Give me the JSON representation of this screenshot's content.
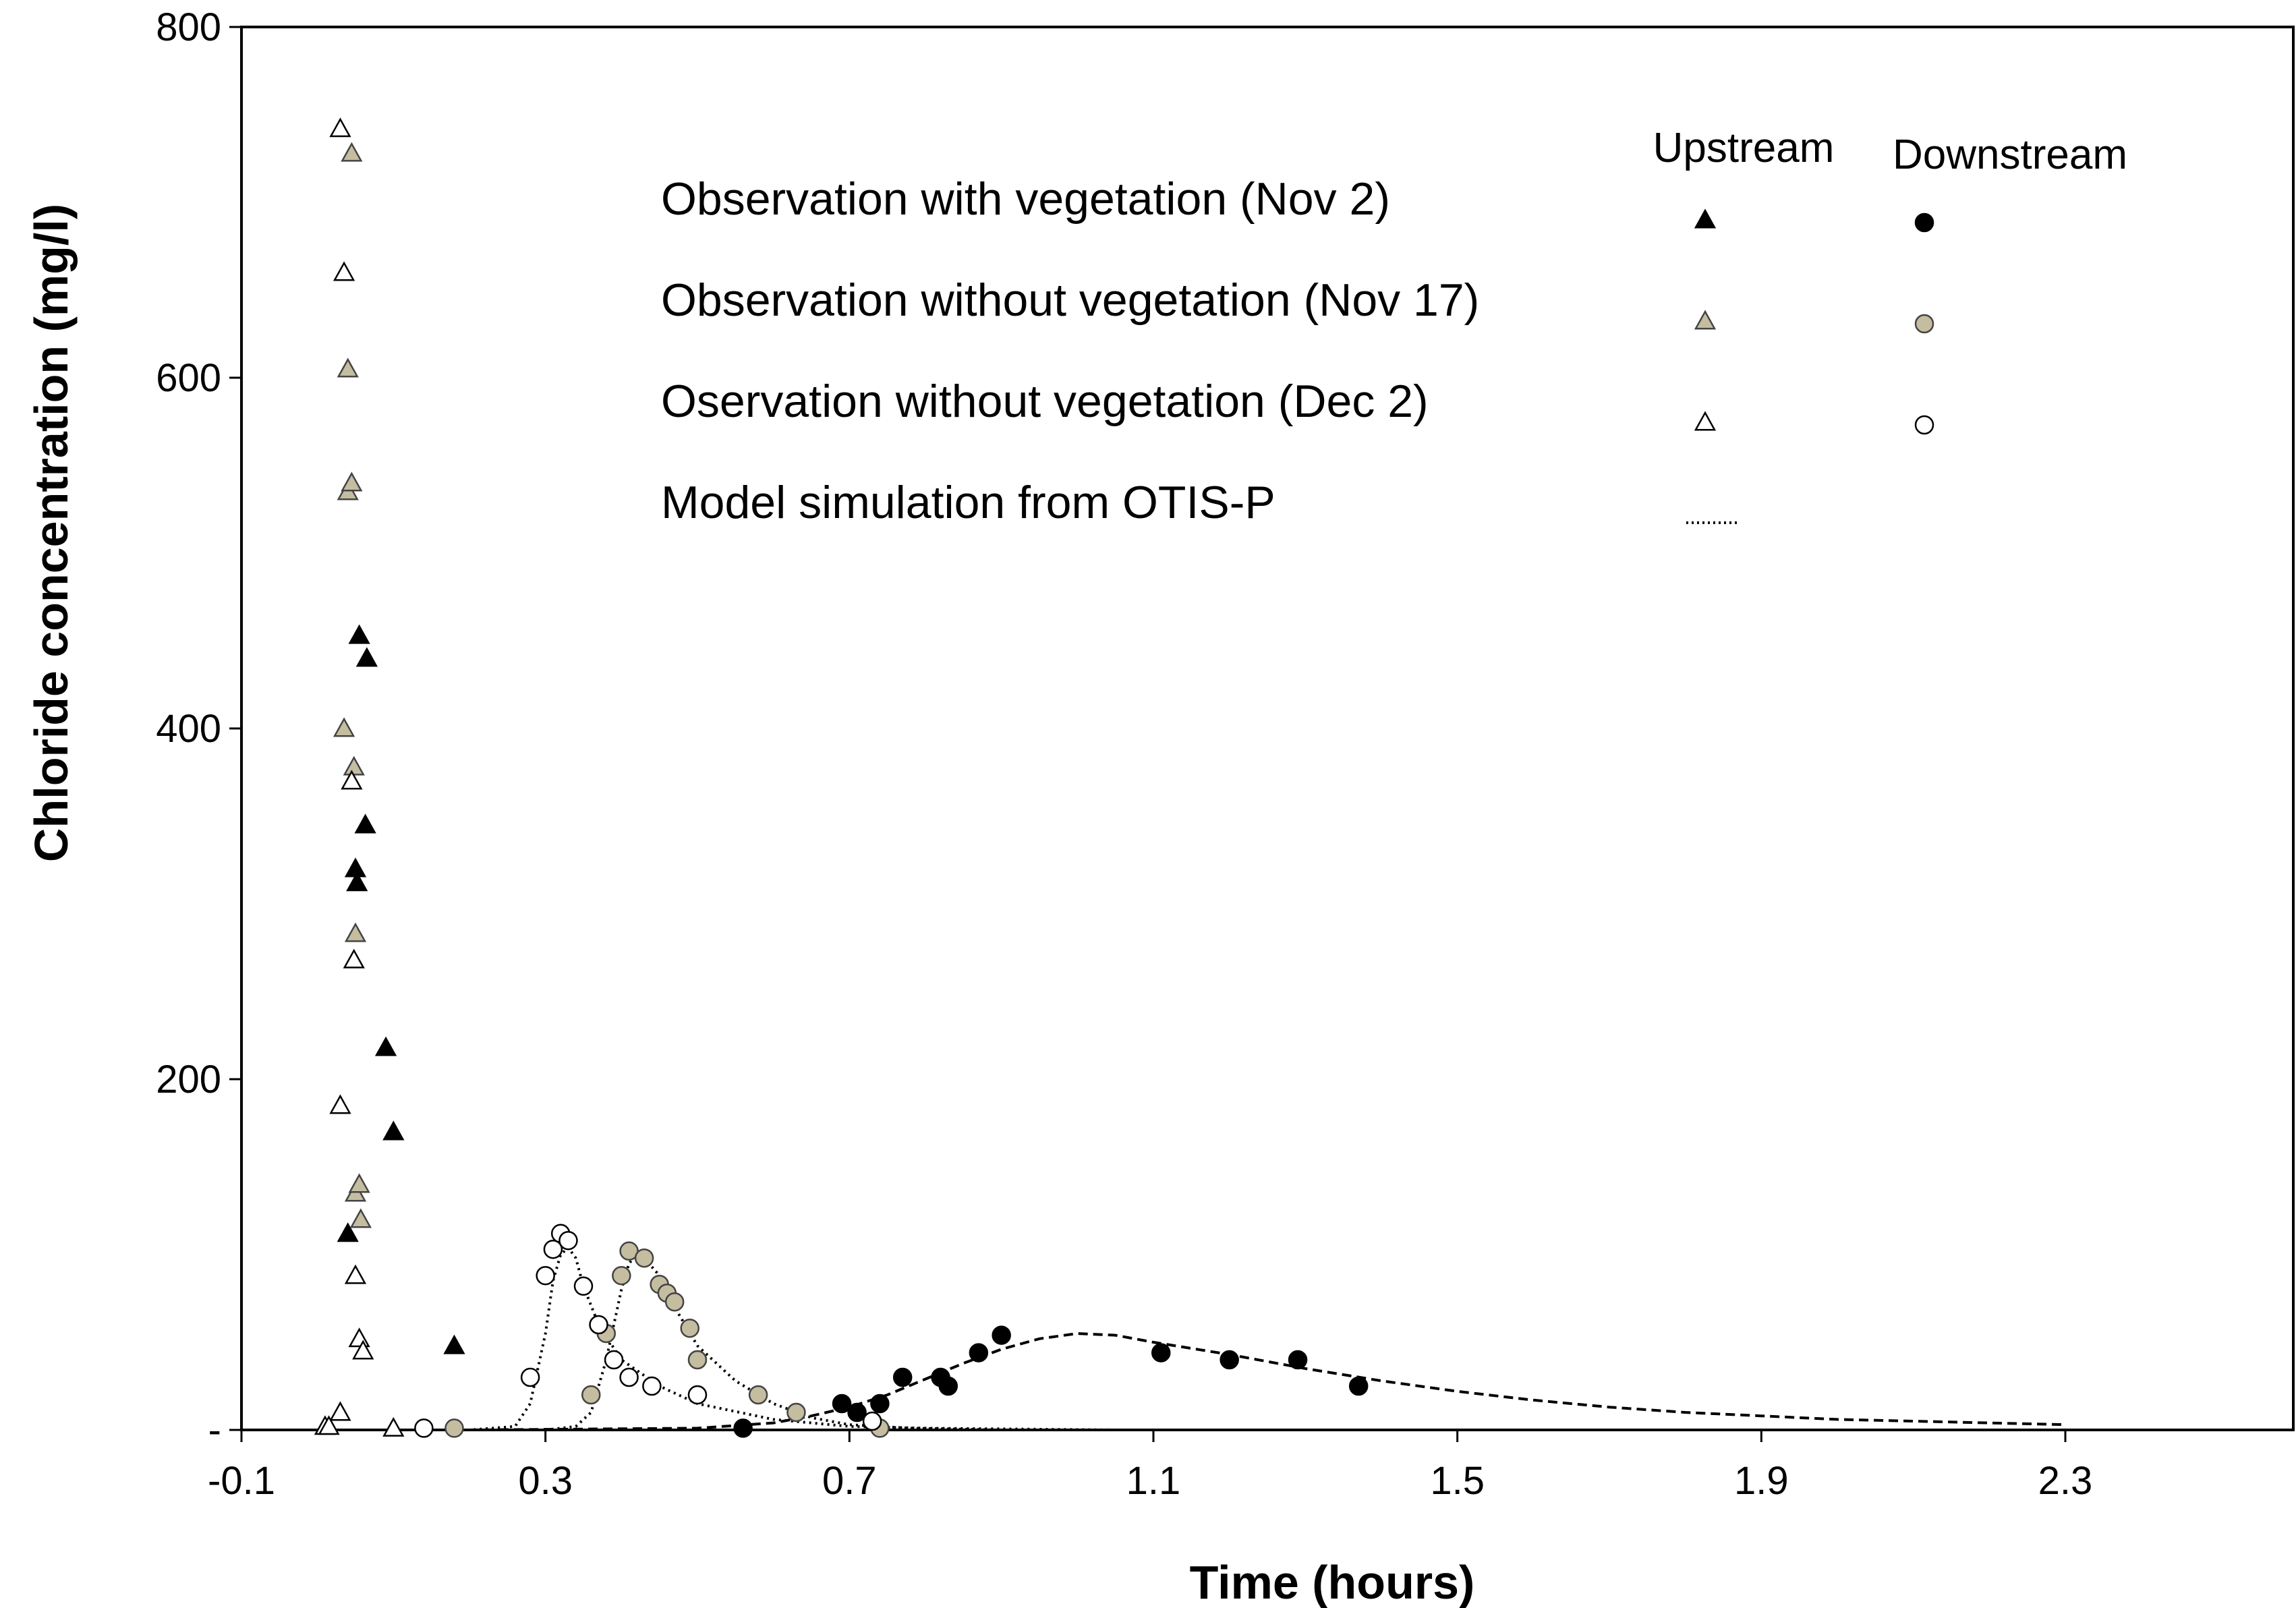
{
  "chart_data": {
    "type": "scatter",
    "title": "",
    "xlabel": "Time (hours)",
    "ylabel": "Chloride concentration (mg/l)",
    "xlim": [
      -0.1,
      2.6
    ],
    "ylim": [
      0,
      800
    ],
    "x_ticks": [
      -0.1,
      0.3,
      0.7,
      1.1,
      1.5,
      1.9,
      2.3
    ],
    "x_tick_labels": [
      "-0.1",
      "0.3",
      "0.7",
      "1.1",
      "1.5",
      "1.9",
      "2.3"
    ],
    "y_ticks": [
      0,
      200,
      400,
      600,
      800
    ],
    "y_tick_labels": [
      "-",
      "200",
      "400",
      "600",
      "800"
    ],
    "grid": false,
    "legend": {
      "placement": "top-right",
      "col_upstream": "Upstream",
      "col_downstream": "Downstream",
      "entries": [
        {
          "label": "Observation with vegetation (Nov 2)",
          "color": "#000000",
          "stroke": "#000000"
        },
        {
          "label": "Observation without vegetation (Nov 17)",
          "color": "#c4bda0",
          "stroke": "#444444"
        },
        {
          "label": "Oservation without vegetation (Dec 2)",
          "color": "#ffffff",
          "stroke": "#000000"
        },
        {
          "label": "Model simulation from OTIS-P",
          "color": "#000000",
          "stroke": "#000000"
        }
      ]
    },
    "series": [
      {
        "name": "Nov 2 Upstream",
        "marker": "triangle",
        "fill": "#000000",
        "stroke": "#000000",
        "points": [
          [
            0.04,
            112
          ],
          [
            0.05,
            320
          ],
          [
            0.052,
            312
          ],
          [
            0.055,
            453
          ],
          [
            0.065,
            440
          ],
          [
            0.063,
            345
          ],
          [
            0.09,
            218
          ],
          [
            0.1,
            170
          ],
          [
            0.18,
            48
          ]
        ]
      },
      {
        "name": "Nov 17 Upstream",
        "marker": "triangle",
        "fill": "#c4bda0",
        "stroke": "#444444",
        "points": [
          [
            0.035,
            400
          ],
          [
            0.04,
            535
          ],
          [
            0.045,
            540
          ],
          [
            0.04,
            605
          ],
          [
            0.045,
            728
          ],
          [
            0.048,
            378
          ],
          [
            0.05,
            283
          ],
          [
            0.05,
            135
          ],
          [
            0.055,
            140
          ],
          [
            0.057,
            120
          ]
        ]
      },
      {
        "name": "Dec 2 Upstream",
        "marker": "triangle",
        "fill": "#ffffff",
        "stroke": "#000000",
        "points": [
          [
            0.03,
            742
          ],
          [
            0.035,
            660
          ],
          [
            0.045,
            370
          ],
          [
            0.048,
            268
          ],
          [
            0.03,
            185
          ],
          [
            0.05,
            88
          ],
          [
            0.055,
            52
          ],
          [
            0.06,
            45
          ],
          [
            0.03,
            10
          ],
          [
            0.01,
            2
          ],
          [
            0.015,
            2
          ],
          [
            0.1,
            1
          ]
        ]
      },
      {
        "name": "Nov 2 Downstream",
        "marker": "circle",
        "fill": "#000000",
        "stroke": "#000000",
        "points": [
          [
            0.56,
            1
          ],
          [
            0.69,
            15
          ],
          [
            0.71,
            10
          ],
          [
            0.74,
            15
          ],
          [
            0.77,
            30
          ],
          [
            0.82,
            30
          ],
          [
            0.83,
            25
          ],
          [
            0.87,
            44
          ],
          [
            0.9,
            54
          ],
          [
            1.11,
            44
          ],
          [
            1.2,
            40
          ],
          [
            1.29,
            40
          ],
          [
            1.37,
            25
          ]
        ]
      },
      {
        "name": "Nov 17 Downstream",
        "marker": "circle",
        "fill": "#c4bda0",
        "stroke": "#444444",
        "points": [
          [
            0.18,
            1
          ],
          [
            0.36,
            20
          ],
          [
            0.38,
            55
          ],
          [
            0.4,
            88
          ],
          [
            0.41,
            102
          ],
          [
            0.43,
            98
          ],
          [
            0.45,
            83
          ],
          [
            0.46,
            78
          ],
          [
            0.47,
            73
          ],
          [
            0.49,
            58
          ],
          [
            0.5,
            40
          ],
          [
            0.58,
            20
          ],
          [
            0.63,
            10
          ],
          [
            0.74,
            1
          ]
        ]
      },
      {
        "name": "Dec 2 Downstream",
        "marker": "circle",
        "fill": "#ffffff",
        "stroke": "#000000",
        "points": [
          [
            0.14,
            1
          ],
          [
            0.28,
            30
          ],
          [
            0.3,
            88
          ],
          [
            0.31,
            103
          ],
          [
            0.32,
            112
          ],
          [
            0.33,
            108
          ],
          [
            0.35,
            82
          ],
          [
            0.37,
            60
          ],
          [
            0.39,
            40
          ],
          [
            0.41,
            30
          ],
          [
            0.44,
            25
          ],
          [
            0.5,
            20
          ],
          [
            0.73,
            5
          ]
        ]
      }
    ],
    "model_curves": [
      {
        "name": "Model Dec 2",
        "dash": "dotted",
        "points": [
          [
            -0.05,
            0
          ],
          [
            0.2,
            0
          ],
          [
            0.26,
            2
          ],
          [
            0.28,
            15
          ],
          [
            0.3,
            55
          ],
          [
            0.31,
            85
          ],
          [
            0.32,
            100
          ],
          [
            0.33,
            104
          ],
          [
            0.34,
            98
          ],
          [
            0.35,
            82
          ],
          [
            0.37,
            60
          ],
          [
            0.4,
            40
          ],
          [
            0.45,
            25
          ],
          [
            0.5,
            15
          ],
          [
            0.6,
            6
          ],
          [
            0.7,
            2
          ],
          [
            0.8,
            1
          ],
          [
            1.05,
            0
          ]
        ]
      },
      {
        "name": "Model Nov 17",
        "dash": "dotted",
        "points": [
          [
            0.3,
            0
          ],
          [
            0.34,
            2
          ],
          [
            0.36,
            10
          ],
          [
            0.38,
            40
          ],
          [
            0.4,
            80
          ],
          [
            0.41,
            95
          ],
          [
            0.42,
            100
          ],
          [
            0.43,
            98
          ],
          [
            0.45,
            88
          ],
          [
            0.47,
            70
          ],
          [
            0.5,
            48
          ],
          [
            0.55,
            28
          ],
          [
            0.6,
            15
          ],
          [
            0.65,
            7
          ],
          [
            0.7,
            3
          ],
          [
            0.78,
            1
          ],
          [
            0.9,
            0
          ]
        ]
      },
      {
        "name": "Model Nov 2",
        "dash": "dashed",
        "points": [
          [
            0.2,
            0
          ],
          [
            0.5,
            1
          ],
          [
            0.6,
            4
          ],
          [
            0.65,
            8
          ],
          [
            0.7,
            13
          ],
          [
            0.75,
            20
          ],
          [
            0.8,
            29
          ],
          [
            0.85,
            38
          ],
          [
            0.9,
            46
          ],
          [
            0.95,
            52
          ],
          [
            1.0,
            55
          ],
          [
            1.05,
            54
          ],
          [
            1.1,
            50
          ],
          [
            1.2,
            43
          ],
          [
            1.3,
            35
          ],
          [
            1.4,
            28
          ],
          [
            1.5,
            22
          ],
          [
            1.6,
            17
          ],
          [
            1.7,
            13
          ],
          [
            1.8,
            10
          ],
          [
            1.9,
            8
          ],
          [
            2.0,
            6
          ],
          [
            2.1,
            5
          ],
          [
            2.2,
            4
          ],
          [
            2.3,
            3
          ]
        ]
      }
    ]
  }
}
